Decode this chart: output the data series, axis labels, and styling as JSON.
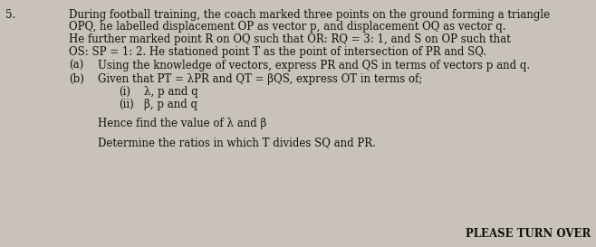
{
  "background_color": "#c8c2b8",
  "question_number": "5.",
  "line1": "During football training, the coach marked three points on the ground forming a triangle",
  "line2": "OPQ, he labelled displacement OP as vector p, and displacement OQ as vector q.",
  "line3": "He further marked point R on OQ such that OR: RQ = 3: 1, and S on OP such that",
  "line4": "OS: SP = 1: 2. He stationed point T as the point of intersection of PR and SQ.",
  "part_a_label": "(a)",
  "part_a_text": "Using the knowledge of vectors, express PR and QS in terms of vectors p and q.",
  "part_b_label": "(b)",
  "part_b_text": "Given that PT = λPR and QT = βQS, express OT in terms of;",
  "sub_i_label": "(i)",
  "sub_i_text": "λ, p and q",
  "sub_ii_label": "(ii)",
  "sub_ii_text": "β, p and q",
  "hence_text": "Hence find the value of λ and β",
  "determine_text": "Determine the ratios in which T divides SQ and PR.",
  "footer_text": "PLEASE TURN OVER",
  "font_size_main": 8.5,
  "font_size_footer": 8.5,
  "text_color": "#111111",
  "footer_color": "#111111"
}
